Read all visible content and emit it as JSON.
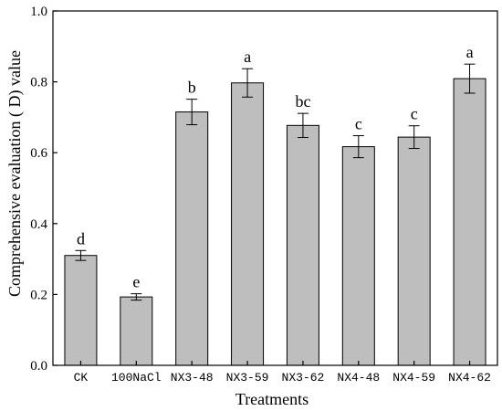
{
  "chart_data": {
    "type": "bar",
    "title": "",
    "xlabel": "Treatments",
    "ylabel": "Comprehensive evaluation ( D) value",
    "ylim": [
      0,
      1.0
    ],
    "yticks": [
      "0.0",
      "0.2",
      "0.4",
      "0.6",
      "0.8",
      "1.0"
    ],
    "categories": [
      "CK",
      "100NaCl",
      "NX3-48",
      "NX3-59",
      "NX3-62",
      "NX4-48",
      "NX4-59",
      "NX4-62"
    ],
    "values": [
      0.31,
      0.193,
      0.715,
      0.797,
      0.677,
      0.617,
      0.644,
      0.809
    ],
    "errors": [
      0.014,
      0.009,
      0.036,
      0.04,
      0.034,
      0.031,
      0.032,
      0.041
    ],
    "significance_labels": [
      "d",
      "e",
      "b",
      "a",
      "bc",
      "c",
      "c",
      "a"
    ],
    "bar_color": "#bebebe",
    "grid": false,
    "legend": "none"
  }
}
